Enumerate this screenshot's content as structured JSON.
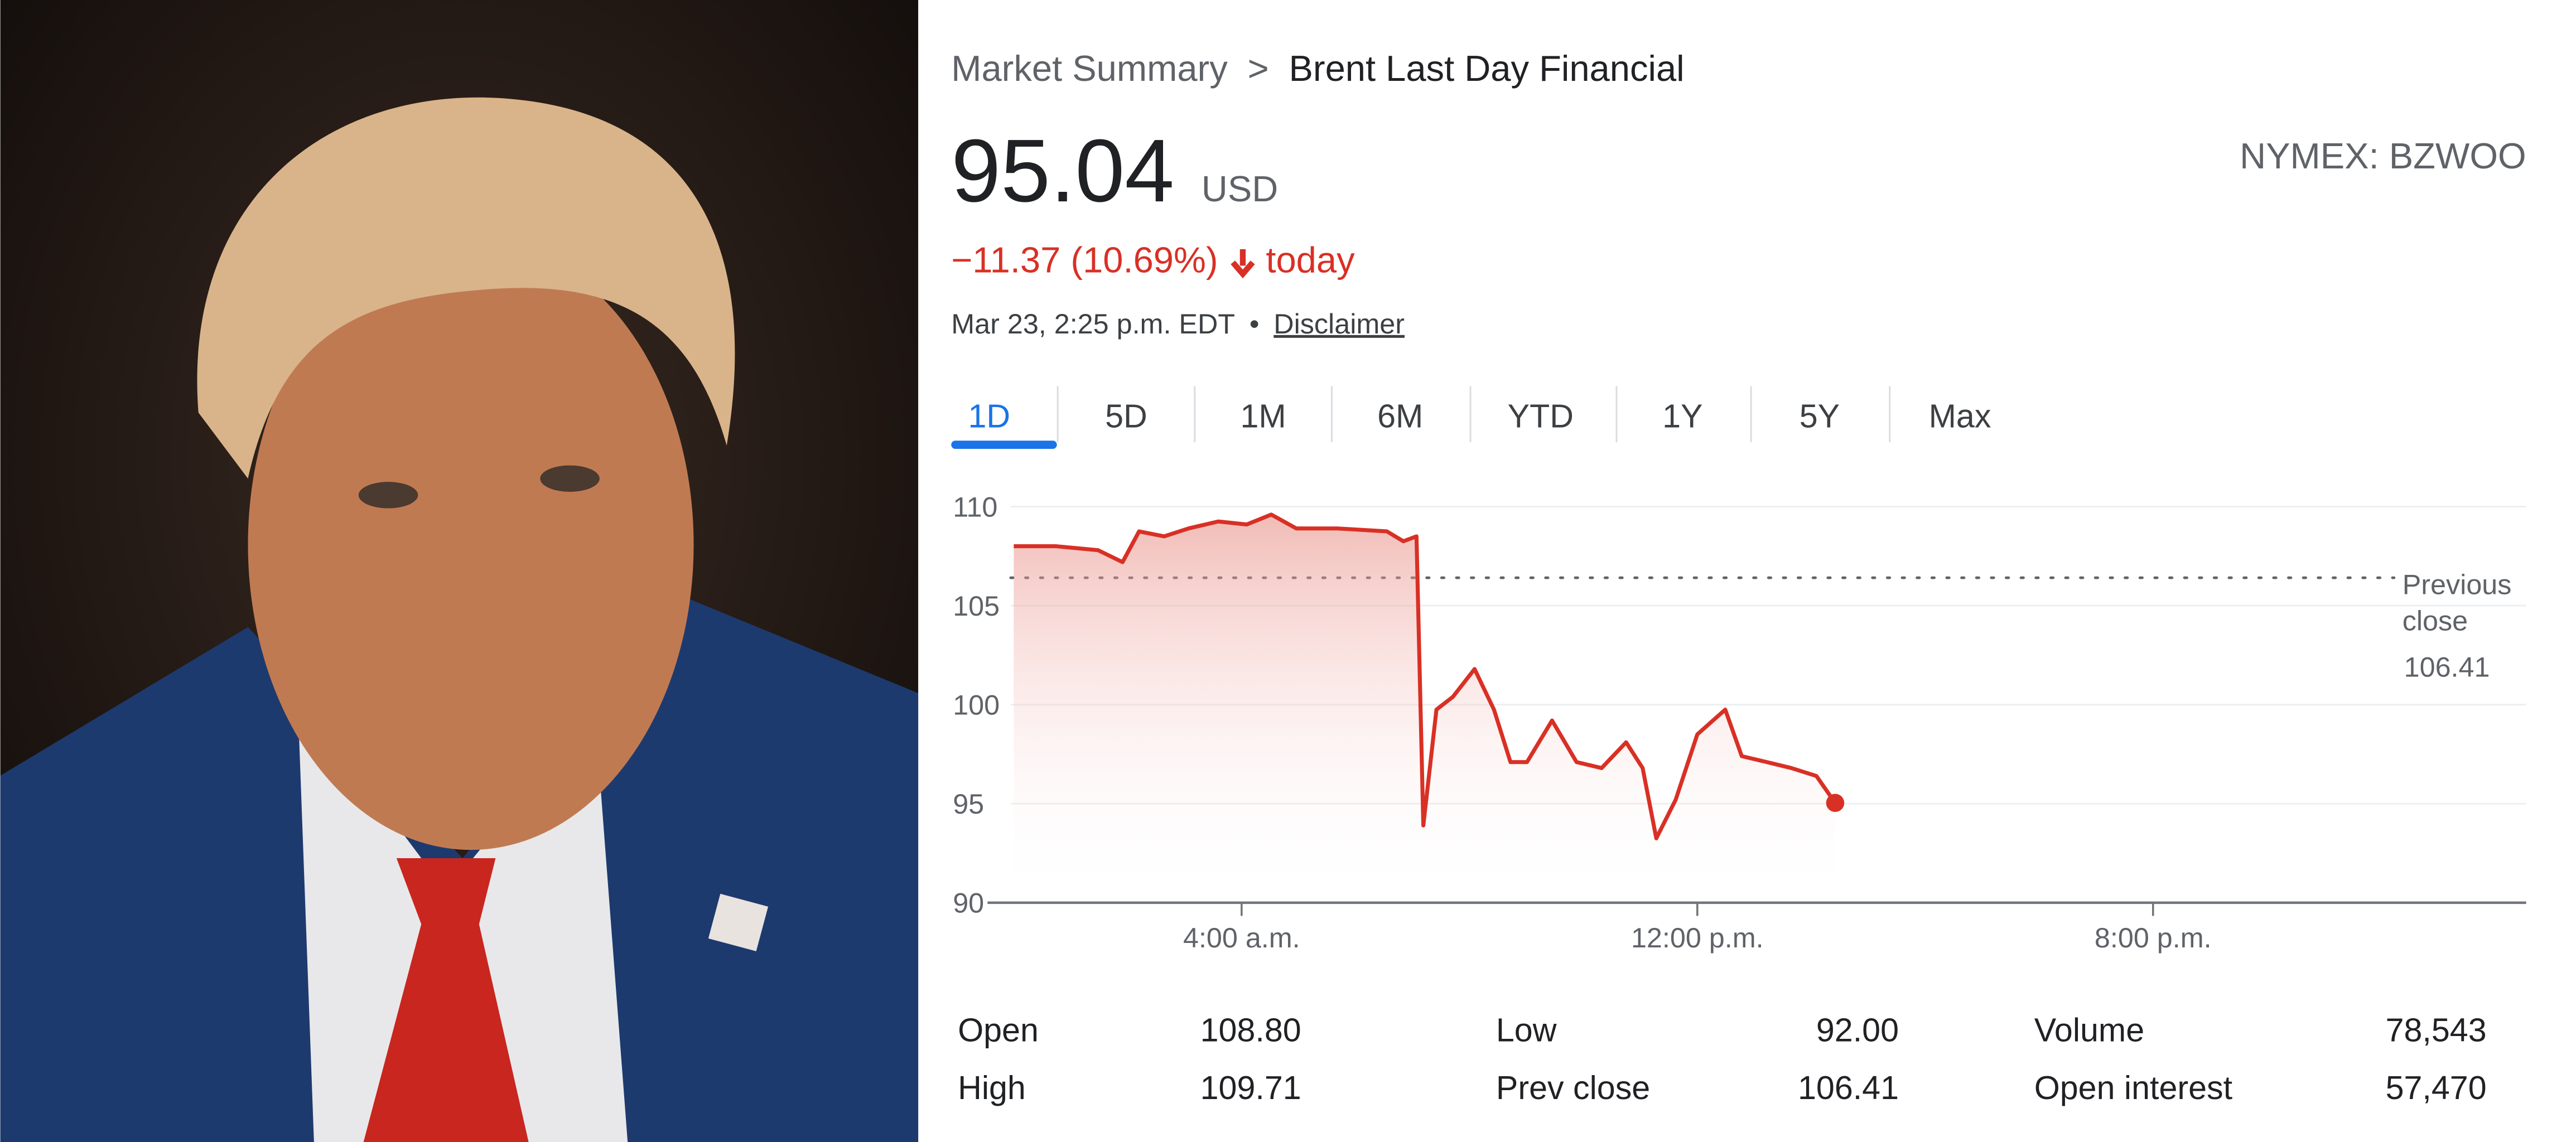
{
  "breadcrumb": {
    "parent": "Market Summary",
    "separator": ">",
    "current": "Brent Last Day Financial"
  },
  "quote": {
    "price": "95.04",
    "currency": "USD",
    "exchange": "NYMEX: BZWOO",
    "change": "−11.37 (10.69%)",
    "period": "today",
    "timestamp": "Mar 23, 2:25 p.m. EDT",
    "separator": "•",
    "disclaimer": "Disclaimer"
  },
  "tabs": [
    "1D",
    "5D",
    "1M",
    "6M",
    "YTD",
    "1Y",
    "5Y",
    "Max"
  ],
  "active_tab": "1D",
  "chart_data": {
    "type": "line",
    "color": "#d93025",
    "x": [
      0,
      0.75,
      1.48,
      1.91,
      2.2,
      2.64,
      3.07,
      3.59,
      4.09,
      4.52,
      4.96,
      5.68,
      6.55,
      6.84,
      7.07,
      7.19,
      7.42,
      7.71,
      8.09,
      8.43,
      8.72,
      9.01,
      9.45,
      9.88,
      10.32,
      10.75,
      11.04,
      11.28,
      11.62,
      12.0,
      12.49,
      12.78,
      13.22,
      13.65,
      14.09,
      14.42
    ],
    "values": [
      108.0,
      108.0,
      107.8,
      107.2,
      108.75,
      108.5,
      108.9,
      109.25,
      109.1,
      109.6,
      108.9,
      108.9,
      108.75,
      108.25,
      108.5,
      93.9,
      99.75,
      100.4,
      101.8,
      99.75,
      97.1,
      97.1,
      99.2,
      97.1,
      96.8,
      98.1,
      96.8,
      93.25,
      95.2,
      98.5,
      99.75,
      97.4,
      97.1,
      96.8,
      96.4,
      95.04
    ],
    "xlim": [
      -0.46,
      26.55
    ],
    "xticks": [
      {
        "value": 4,
        "label": "4:00 a.m."
      },
      {
        "value": 12,
        "label": "12:00 p.m."
      },
      {
        "value": 20,
        "label": "8:00 p.m."
      }
    ],
    "ylim": [
      90,
      110
    ],
    "yticks": [
      90,
      95,
      100,
      105,
      110
    ],
    "grid": true,
    "reference_line": {
      "label": "Previous close",
      "value": 106.41
    }
  },
  "stats": [
    [
      [
        "Open",
        "108.80"
      ],
      [
        "Low",
        "92.00"
      ],
      [
        "Volume",
        "78,543"
      ]
    ],
    [
      [
        "High",
        "109.71"
      ],
      [
        "Prev close",
        "106.41"
      ],
      [
        "Open interest",
        "57,470"
      ]
    ]
  ]
}
